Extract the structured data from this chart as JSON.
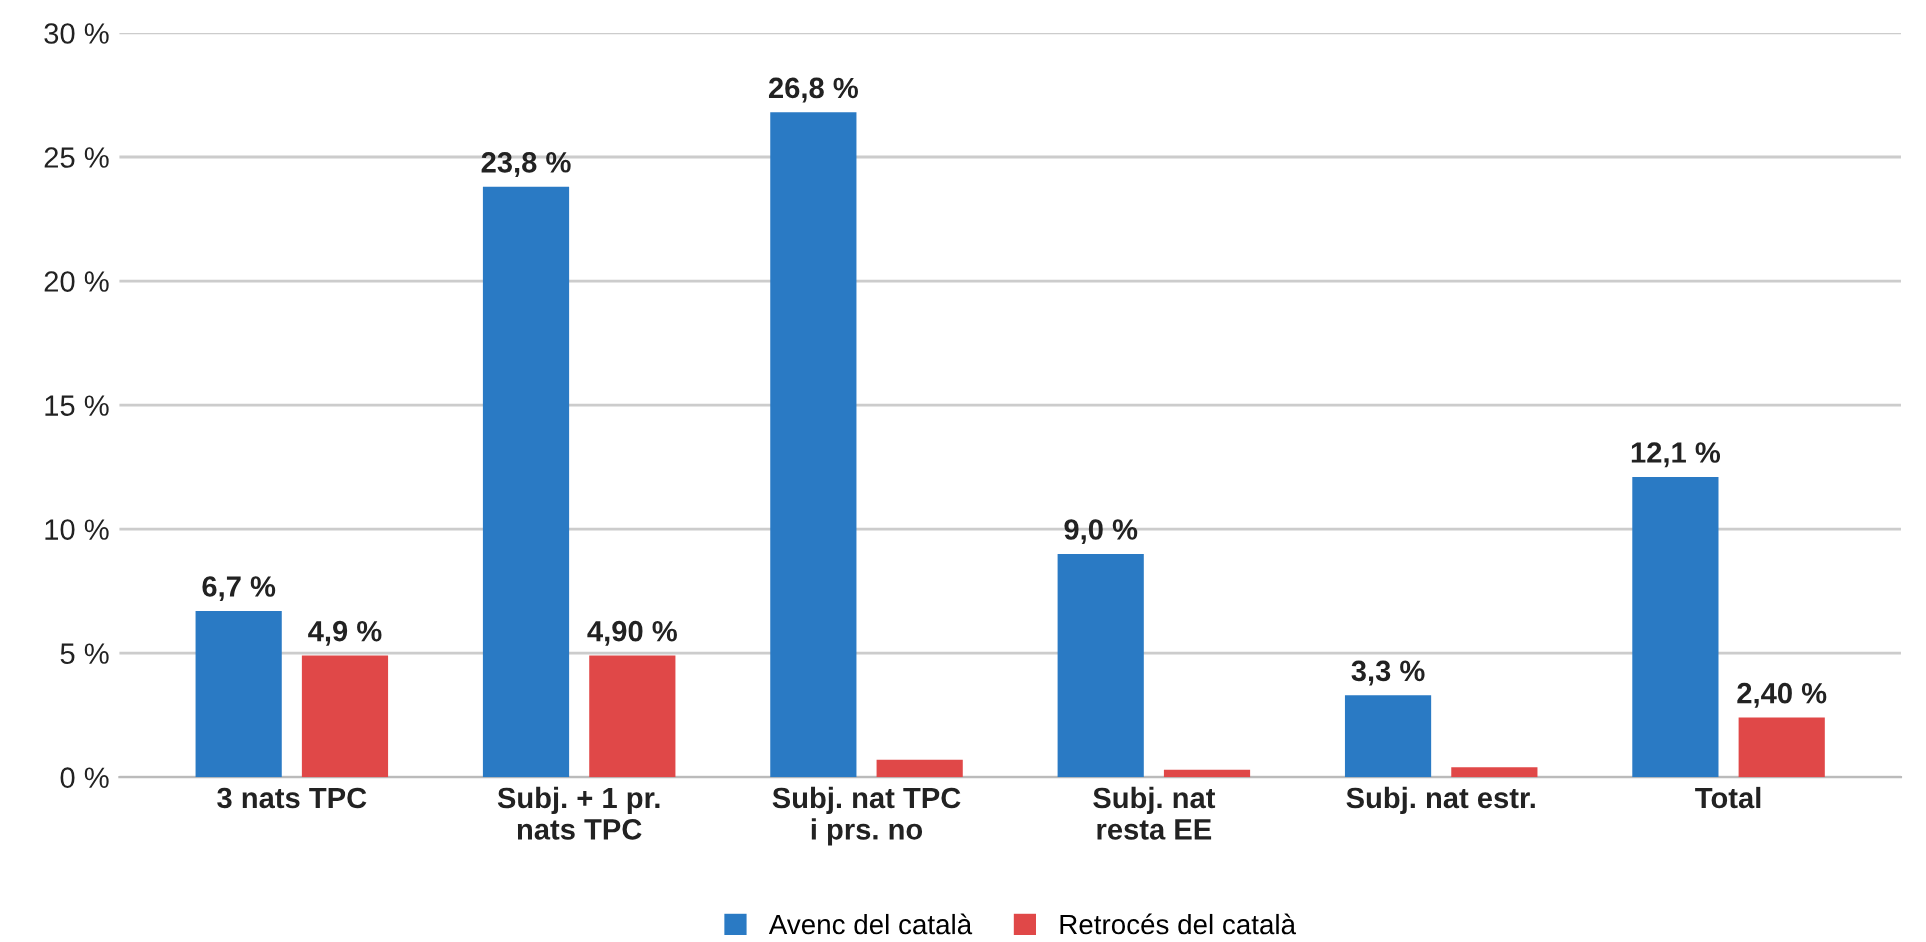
{
  "chart_data": {
    "type": "bar",
    "categories": [
      "3 nats TPC",
      "Subj. + 1 pr.\nnats TPC",
      "Subj. nat TPC\ni prs. no",
      "Subj. nat\nresta EE",
      "Subj. nat estr.",
      "Total"
    ],
    "series": [
      {
        "name": "Avenc del català",
        "color": "#2a7ac4",
        "values": [
          6.7,
          23.8,
          26.8,
          9.0,
          3.3,
          12.1
        ],
        "value_labels": [
          "6,7 %",
          "23,8 %",
          "26,8 %",
          "9,0 %",
          "3,3 %",
          "12,1 %"
        ]
      },
      {
        "name": "Retrocés del català",
        "color": "#e04848",
        "values": [
          4.9,
          4.9,
          0.7,
          0.3,
          0.4,
          2.4
        ],
        "value_labels": [
          "4,9 %",
          "4,90 %",
          null,
          null,
          null,
          "2,40 %"
        ]
      }
    ],
    "ylim": [
      0,
      30
    ],
    "yticks": [
      {
        "value": 0,
        "label": "0 %"
      },
      {
        "value": 5,
        "label": "5 %"
      },
      {
        "value": 10,
        "label": "10 %"
      },
      {
        "value": 15,
        "label": "15 %"
      },
      {
        "value": 20,
        "label": "20 %"
      },
      {
        "value": 25,
        "label": "25 %"
      },
      {
        "value": 30,
        "label": "30 %"
      }
    ],
    "grid": "y",
    "legend": "bottom"
  }
}
